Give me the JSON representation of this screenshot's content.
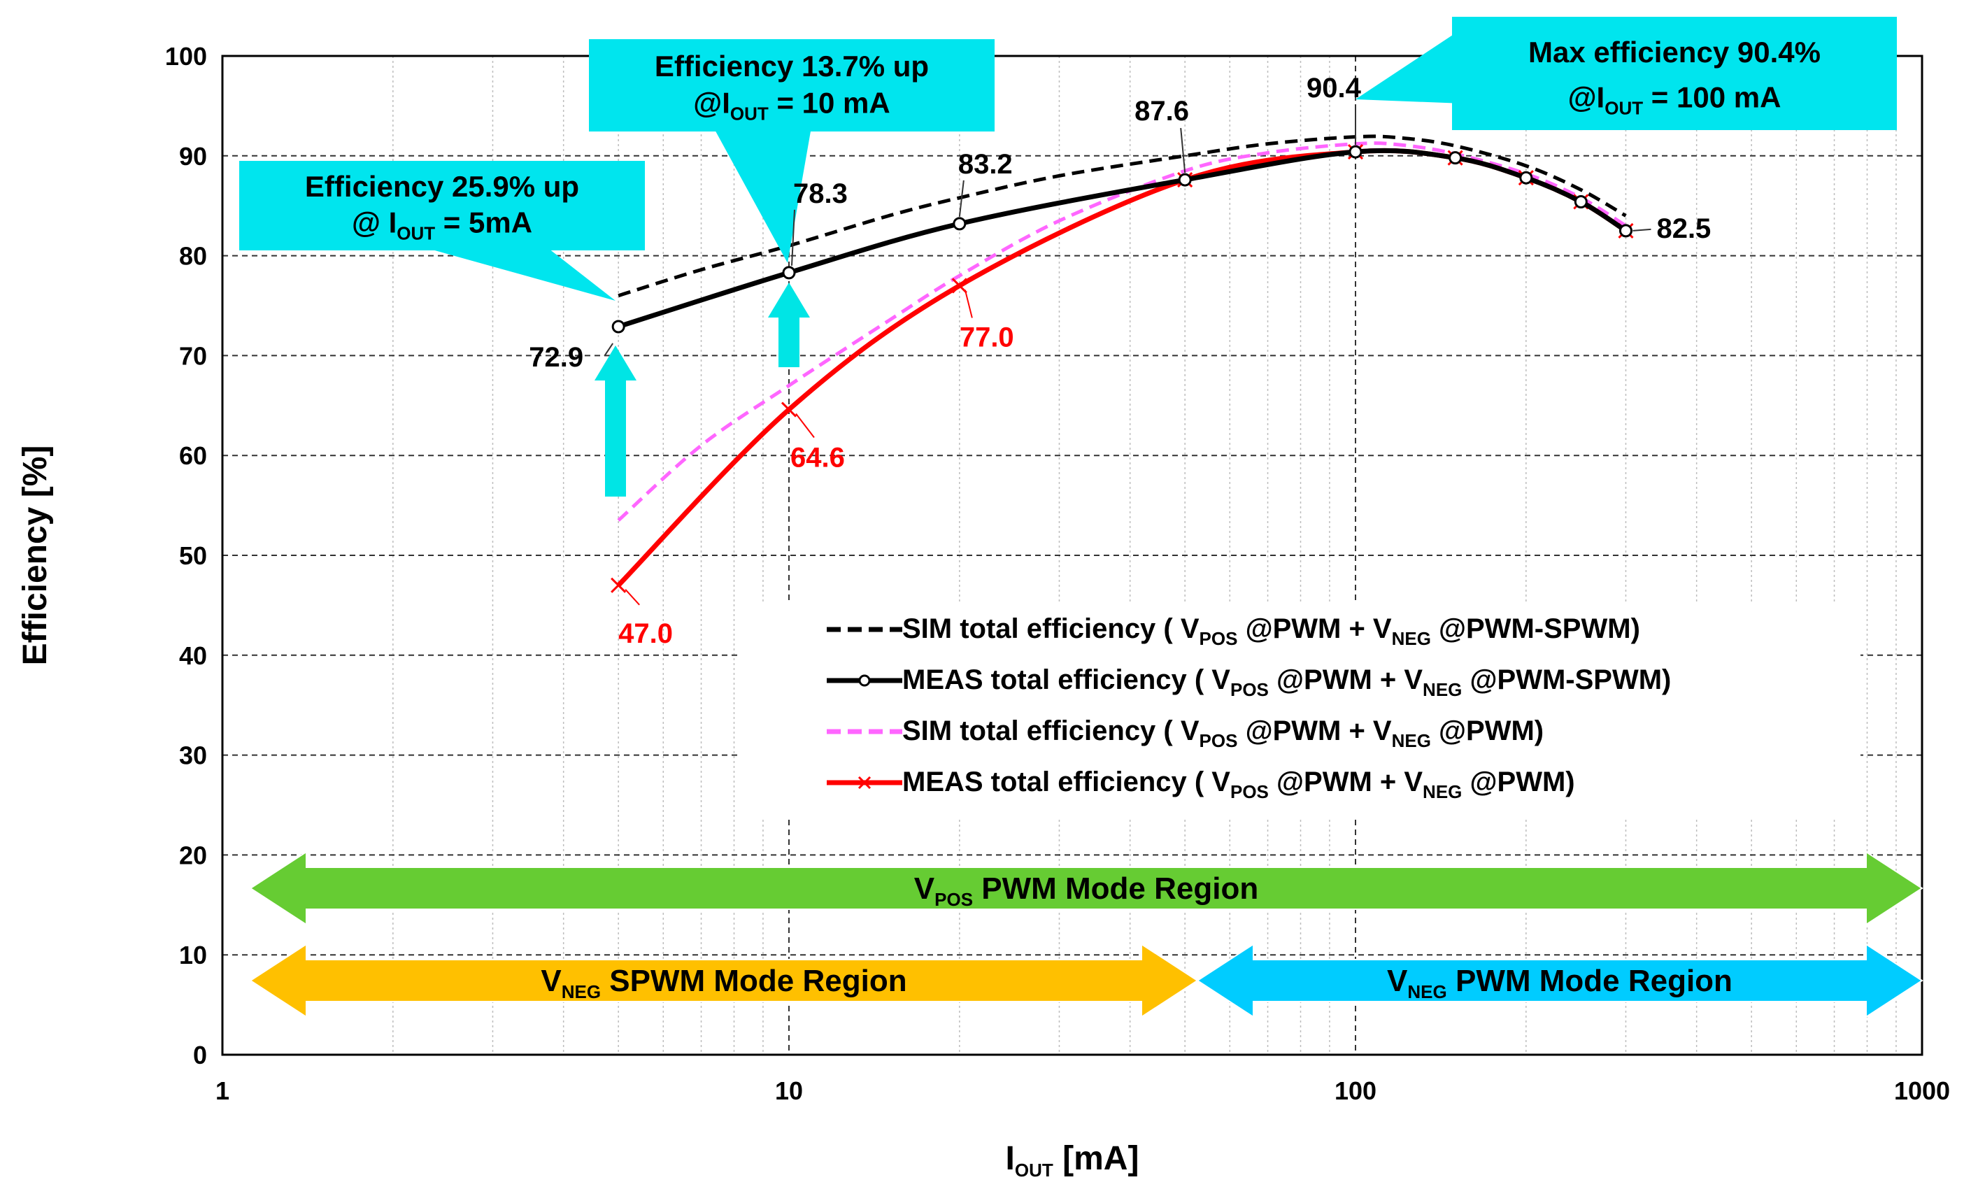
{
  "chart_data": {
    "type": "line",
    "x_scale": "log",
    "xlim": [
      1,
      1000
    ],
    "ylim": [
      0,
      100
    ],
    "xlabel": {
      "main": "I",
      "sub": "OUT",
      "unit": " [mA]"
    },
    "ylabel": "Efficiency [%]",
    "x_ticks": [
      1,
      10,
      100,
      1000
    ],
    "y_ticks": [
      0,
      10,
      20,
      30,
      40,
      50,
      60,
      70,
      80,
      90,
      100
    ],
    "grid": "major dashed, minor dotted",
    "series": [
      {
        "name": "SIM total efficiency ( V_POS @PWM + V_NEG @PWM-SPWM)",
        "legend": [
          " SIM total efficiency ( V",
          "POS",
          " @PWM + V",
          "NEG",
          " @PWM-SPWM)"
        ],
        "style": "dashed",
        "color": "#000000",
        "x": [
          5,
          7,
          10,
          15,
          20,
          30,
          50,
          70,
          100,
          120,
          150,
          200,
          250,
          300
        ],
        "y": [
          76.0,
          78.6,
          81.0,
          84.0,
          85.8,
          88.0,
          90.0,
          91.2,
          91.9,
          91.8,
          91.0,
          89.0,
          86.6,
          84.0
        ]
      },
      {
        "name": "MEAS total efficiency ( V_POS @PWM + V_NEG @PWM-SPWM)",
        "legend": [
          " MEAS total efficiency ( V",
          "POS",
          " @PWM + V",
          "NEG",
          " @PWM-SPWM)"
        ],
        "style": "solid-circle",
        "color": "#000000",
        "x": [
          5,
          10,
          20,
          50,
          100,
          150,
          200,
          250,
          300
        ],
        "y": [
          72.9,
          78.3,
          83.2,
          87.6,
          90.4,
          89.8,
          87.8,
          85.4,
          82.5
        ]
      },
      {
        "name": "SIM total efficiency ( V_POS @PWM + V_NEG @PWM)",
        "legend": [
          " SIM total efficiency ( V",
          "POS",
          " @PWM + V",
          "NEG",
          " @PWM)"
        ],
        "style": "dashed",
        "color": "#ff66ff",
        "x": [
          5,
          7,
          10,
          15,
          20,
          30,
          50,
          70,
          100,
          120,
          150,
          200,
          250,
          300
        ],
        "y": [
          53.5,
          61.0,
          67.0,
          73.5,
          78.0,
          83.5,
          88.5,
          90.3,
          91.2,
          91.1,
          90.2,
          88.2,
          85.8,
          83.0
        ]
      },
      {
        "name": "MEAS total efficiency ( V_POS @PWM + V_NEG @PWM)",
        "legend": [
          " MEAS total efficiency ( V",
          "POS",
          " @PWM + V",
          "NEG",
          " @PWM)"
        ],
        "style": "solid-x",
        "color": "#ff0000",
        "x": [
          5,
          10,
          20,
          50,
          100,
          150,
          200,
          250,
          300
        ],
        "y": [
          47.0,
          64.6,
          77.0,
          87.6,
          90.4,
          89.8,
          87.8,
          85.4,
          82.5
        ]
      }
    ],
    "data_labels": [
      {
        "text": "72.9",
        "color": "#000000"
      },
      {
        "text": "78.3",
        "color": "#000000"
      },
      {
        "text": "83.2",
        "color": "#000000"
      },
      {
        "text": "87.6",
        "color": "#000000"
      },
      {
        "text": "90.4",
        "color": "#000000"
      },
      {
        "text": "82.5",
        "color": "#000000"
      },
      {
        "text": "47.0",
        "color": "#ff0000"
      },
      {
        "text": "64.6",
        "color": "#ff0000"
      },
      {
        "text": "77.0",
        "color": "#ff0000"
      }
    ],
    "callouts": [
      {
        "line1": "Efficiency 25.9% up",
        "line2": [
          "@ I",
          "OUT",
          " = 5mA"
        ]
      },
      {
        "line1": "Efficiency 13.7% up",
        "line2": [
          "@I",
          "OUT",
          " = 10 mA"
        ]
      },
      {
        "line1": "Max efficiency 90.4%",
        "line2": [
          "@I",
          "OUT",
          " = 100 mA"
        ]
      }
    ],
    "regions": [
      {
        "parts": [
          "V",
          "POS",
          " PWM Mode Region"
        ],
        "color": "#66cc33",
        "x_range": [
          1,
          1000
        ]
      },
      {
        "parts": [
          "V",
          "NEG",
          " SPWM Mode Region"
        ],
        "color": "#ffc000",
        "x_range": [
          1,
          55
        ]
      },
      {
        "parts": [
          "V",
          "NEG",
          " PWM Mode Region"
        ],
        "color": "#00ccff",
        "x_range": [
          55,
          1000
        ]
      }
    ],
    "improvement_arrow_color": "#00e5e5",
    "callout_color": "#00e5ee"
  }
}
